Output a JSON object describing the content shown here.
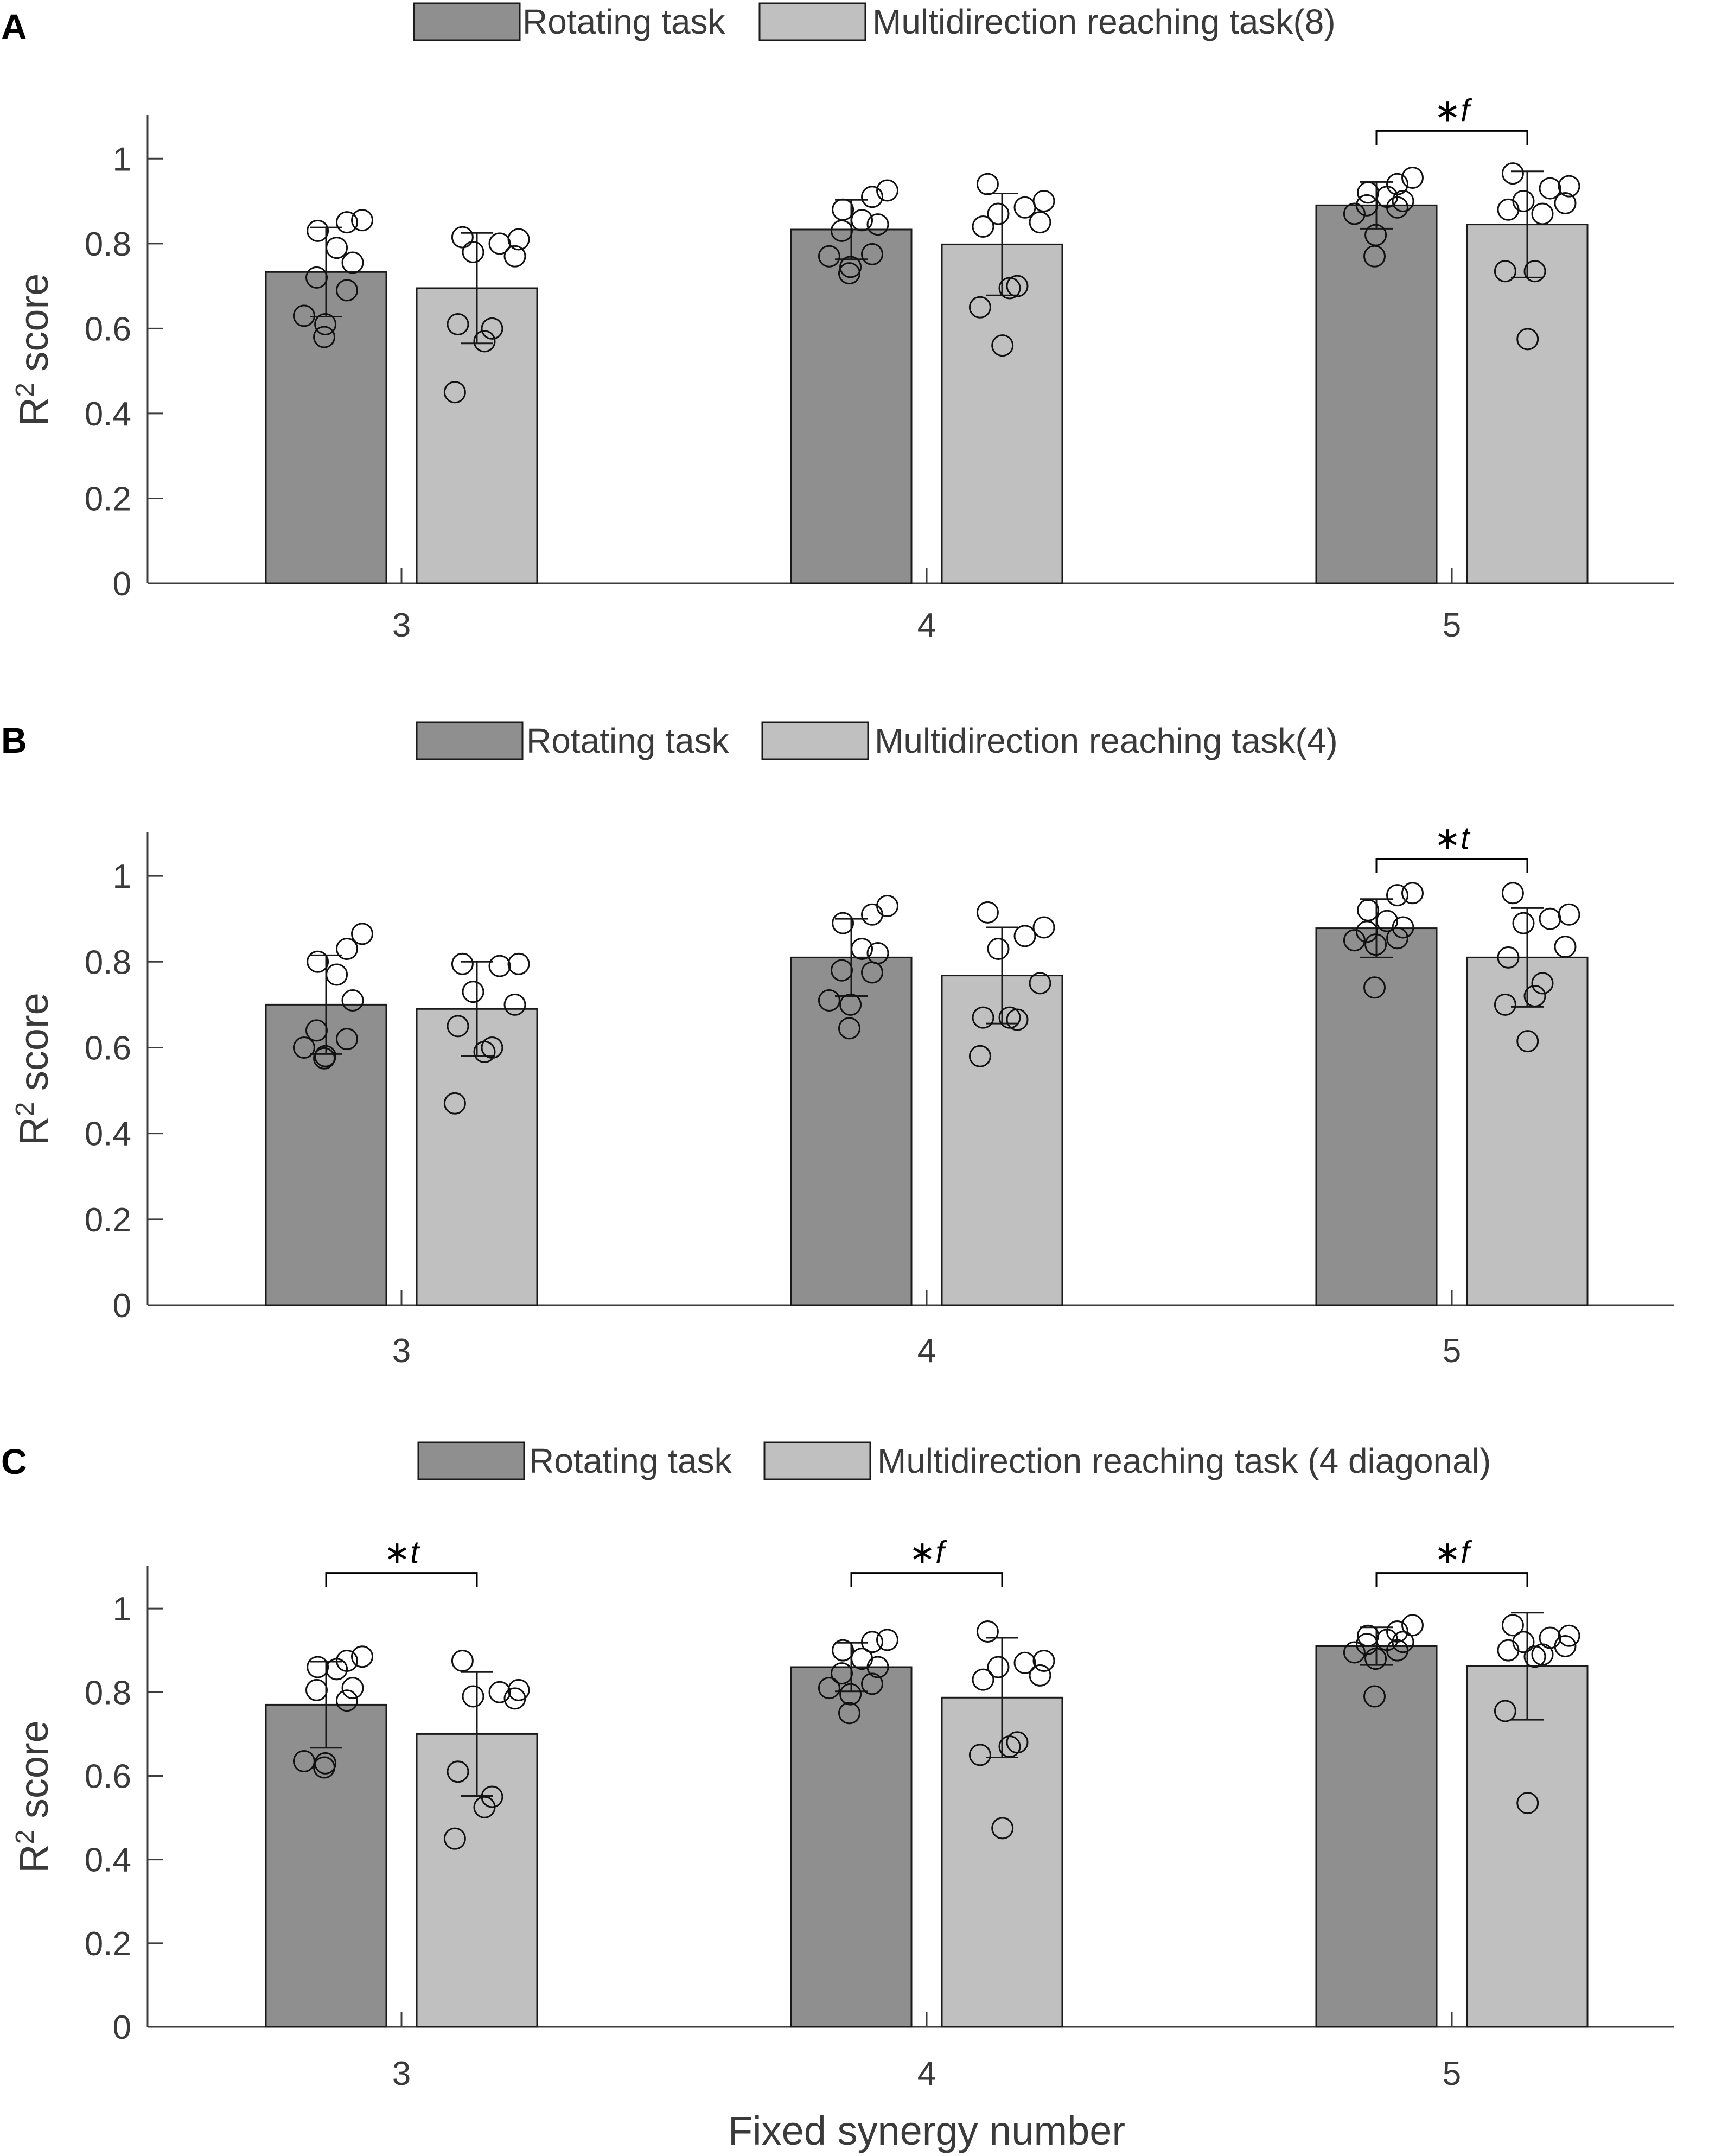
{
  "figure": {
    "xlabel": "Fixed synergy number",
    "ylabel_base": "R",
    "ylabel_sup": "2",
    "ylabel_rest": " score"
  },
  "colors": {
    "series1": "#8f8f8f",
    "series2": "#c0c0c0",
    "text": "#3a3a3a"
  },
  "chart_data": [
    {
      "type": "bar",
      "panel": "A",
      "categories": [
        "3",
        "4",
        "5"
      ],
      "ylim": [
        0,
        1.1
      ],
      "yticks": [
        0,
        0.2,
        0.4,
        0.6,
        0.8,
        1
      ],
      "ytick_labels": [
        "0",
        "0.2",
        "0.4",
        "0.6",
        "0.8",
        "1"
      ],
      "series": [
        {
          "name": "Rotating task",
          "values": [
            0.733,
            0.833,
            0.89
          ],
          "err": [
            0.105,
            0.07,
            0.055
          ],
          "points": [
            [
              0.855,
              0.85,
              0.83,
              0.79,
              0.755,
              0.72,
              0.69,
              0.63,
              0.61,
              0.58
            ],
            [
              0.925,
              0.91,
              0.88,
              0.855,
              0.845,
              0.83,
              0.775,
              0.77,
              0.745,
              0.73
            ],
            [
              0.955,
              0.94,
              0.92,
              0.91,
              0.9,
              0.89,
              0.885,
              0.87,
              0.82,
              0.77
            ]
          ]
        },
        {
          "name": "Multidirection reaching task(8)",
          "values": [
            0.695,
            0.798,
            0.845
          ],
          "err": [
            0.13,
            0.12,
            0.125
          ],
          "points": [
            [
              0.815,
              0.81,
              0.8,
              0.78,
              0.77,
              0.61,
              0.6,
              0.57,
              0.45
            ],
            [
              0.94,
              0.9,
              0.885,
              0.87,
              0.85,
              0.84,
              0.7,
              0.695,
              0.65,
              0.56
            ],
            [
              0.965,
              0.935,
              0.93,
              0.9,
              0.895,
              0.88,
              0.87,
              0.735,
              0.735,
              0.575
            ]
          ]
        }
      ],
      "significance": [
        {
          "category": "5",
          "label": "∗f",
          "y": 1.065
        }
      ]
    },
    {
      "type": "bar",
      "panel": "B",
      "categories": [
        "3",
        "4",
        "5"
      ],
      "ylim": [
        0,
        1.1
      ],
      "yticks": [
        0,
        0.2,
        0.4,
        0.6,
        0.8,
        1
      ],
      "ytick_labels": [
        "0",
        "0.2",
        "0.4",
        "0.6",
        "0.8",
        "1"
      ],
      "series": [
        {
          "name": "Rotating task",
          "values": [
            0.7,
            0.81,
            0.878
          ],
          "err": [
            0.115,
            0.09,
            0.068
          ],
          "points": [
            [
              0.865,
              0.83,
              0.8,
              0.77,
              0.71,
              0.64,
              0.62,
              0.6,
              0.58,
              0.575
            ],
            [
              0.93,
              0.91,
              0.89,
              0.83,
              0.82,
              0.78,
              0.775,
              0.71,
              0.7,
              0.645
            ],
            [
              0.96,
              0.955,
              0.92,
              0.895,
              0.88,
              0.87,
              0.855,
              0.85,
              0.84,
              0.74
            ]
          ]
        },
        {
          "name": "Multidirection reaching task(4)",
          "values": [
            0.69,
            0.768,
            0.81
          ],
          "err": [
            0.11,
            0.112,
            0.115
          ],
          "points": [
            [
              0.795,
              0.795,
              0.79,
              0.73,
              0.7,
              0.65,
              0.6,
              0.59,
              0.47
            ],
            [
              0.915,
              0.88,
              0.86,
              0.83,
              0.75,
              0.67,
              0.665,
              0.67,
              0.58
            ],
            [
              0.96,
              0.91,
              0.9,
              0.89,
              0.835,
              0.81,
              0.75,
              0.72,
              0.7,
              0.615
            ]
          ]
        }
      ],
      "significance": [
        {
          "category": "5",
          "label": "∗t",
          "y": 1.04
        }
      ]
    },
    {
      "type": "bar",
      "panel": "C",
      "categories": [
        "3",
        "4",
        "5"
      ],
      "ylim": [
        0,
        1.1
      ],
      "yticks": [
        0,
        0.2,
        0.4,
        0.6,
        0.8,
        1
      ],
      "ytick_labels": [
        "0",
        "0.2",
        "0.4",
        "0.6",
        "0.8",
        "1"
      ],
      "series": [
        {
          "name": "Rotating task",
          "values": [
            0.77,
            0.86,
            0.91
          ],
          "err": [
            0.103,
            0.058,
            0.045
          ],
          "points": [
            [
              0.885,
              0.875,
              0.86,
              0.855,
              0.81,
              0.805,
              0.78,
              0.635,
              0.63,
              0.62
            ],
            [
              0.925,
              0.92,
              0.9,
              0.88,
              0.86,
              0.845,
              0.82,
              0.81,
              0.795,
              0.75
            ],
            [
              0.96,
              0.945,
              0.935,
              0.925,
              0.92,
              0.915,
              0.9,
              0.895,
              0.88,
              0.79
            ]
          ]
        },
        {
          "name": "Multidirection reaching task (4 diagonal)",
          "values": [
            0.7,
            0.787,
            0.862
          ],
          "err": [
            0.148,
            0.143,
            0.128
          ],
          "points": [
            [
              0.875,
              0.805,
              0.8,
              0.79,
              0.785,
              0.61,
              0.55,
              0.525,
              0.45
            ],
            [
              0.945,
              0.875,
              0.87,
              0.86,
              0.84,
              0.83,
              0.68,
              0.67,
              0.65,
              0.475
            ],
            [
              0.96,
              0.935,
              0.93,
              0.92,
              0.91,
              0.9,
              0.89,
              0.885,
              0.755,
              0.535
            ]
          ]
        }
      ],
      "significance": [
        {
          "category": "3",
          "label": "∗t",
          "y": 1.085
        },
        {
          "category": "4",
          "label": "∗f",
          "y": 1.085
        },
        {
          "category": "5",
          "label": "∗f",
          "y": 1.085
        }
      ]
    }
  ]
}
